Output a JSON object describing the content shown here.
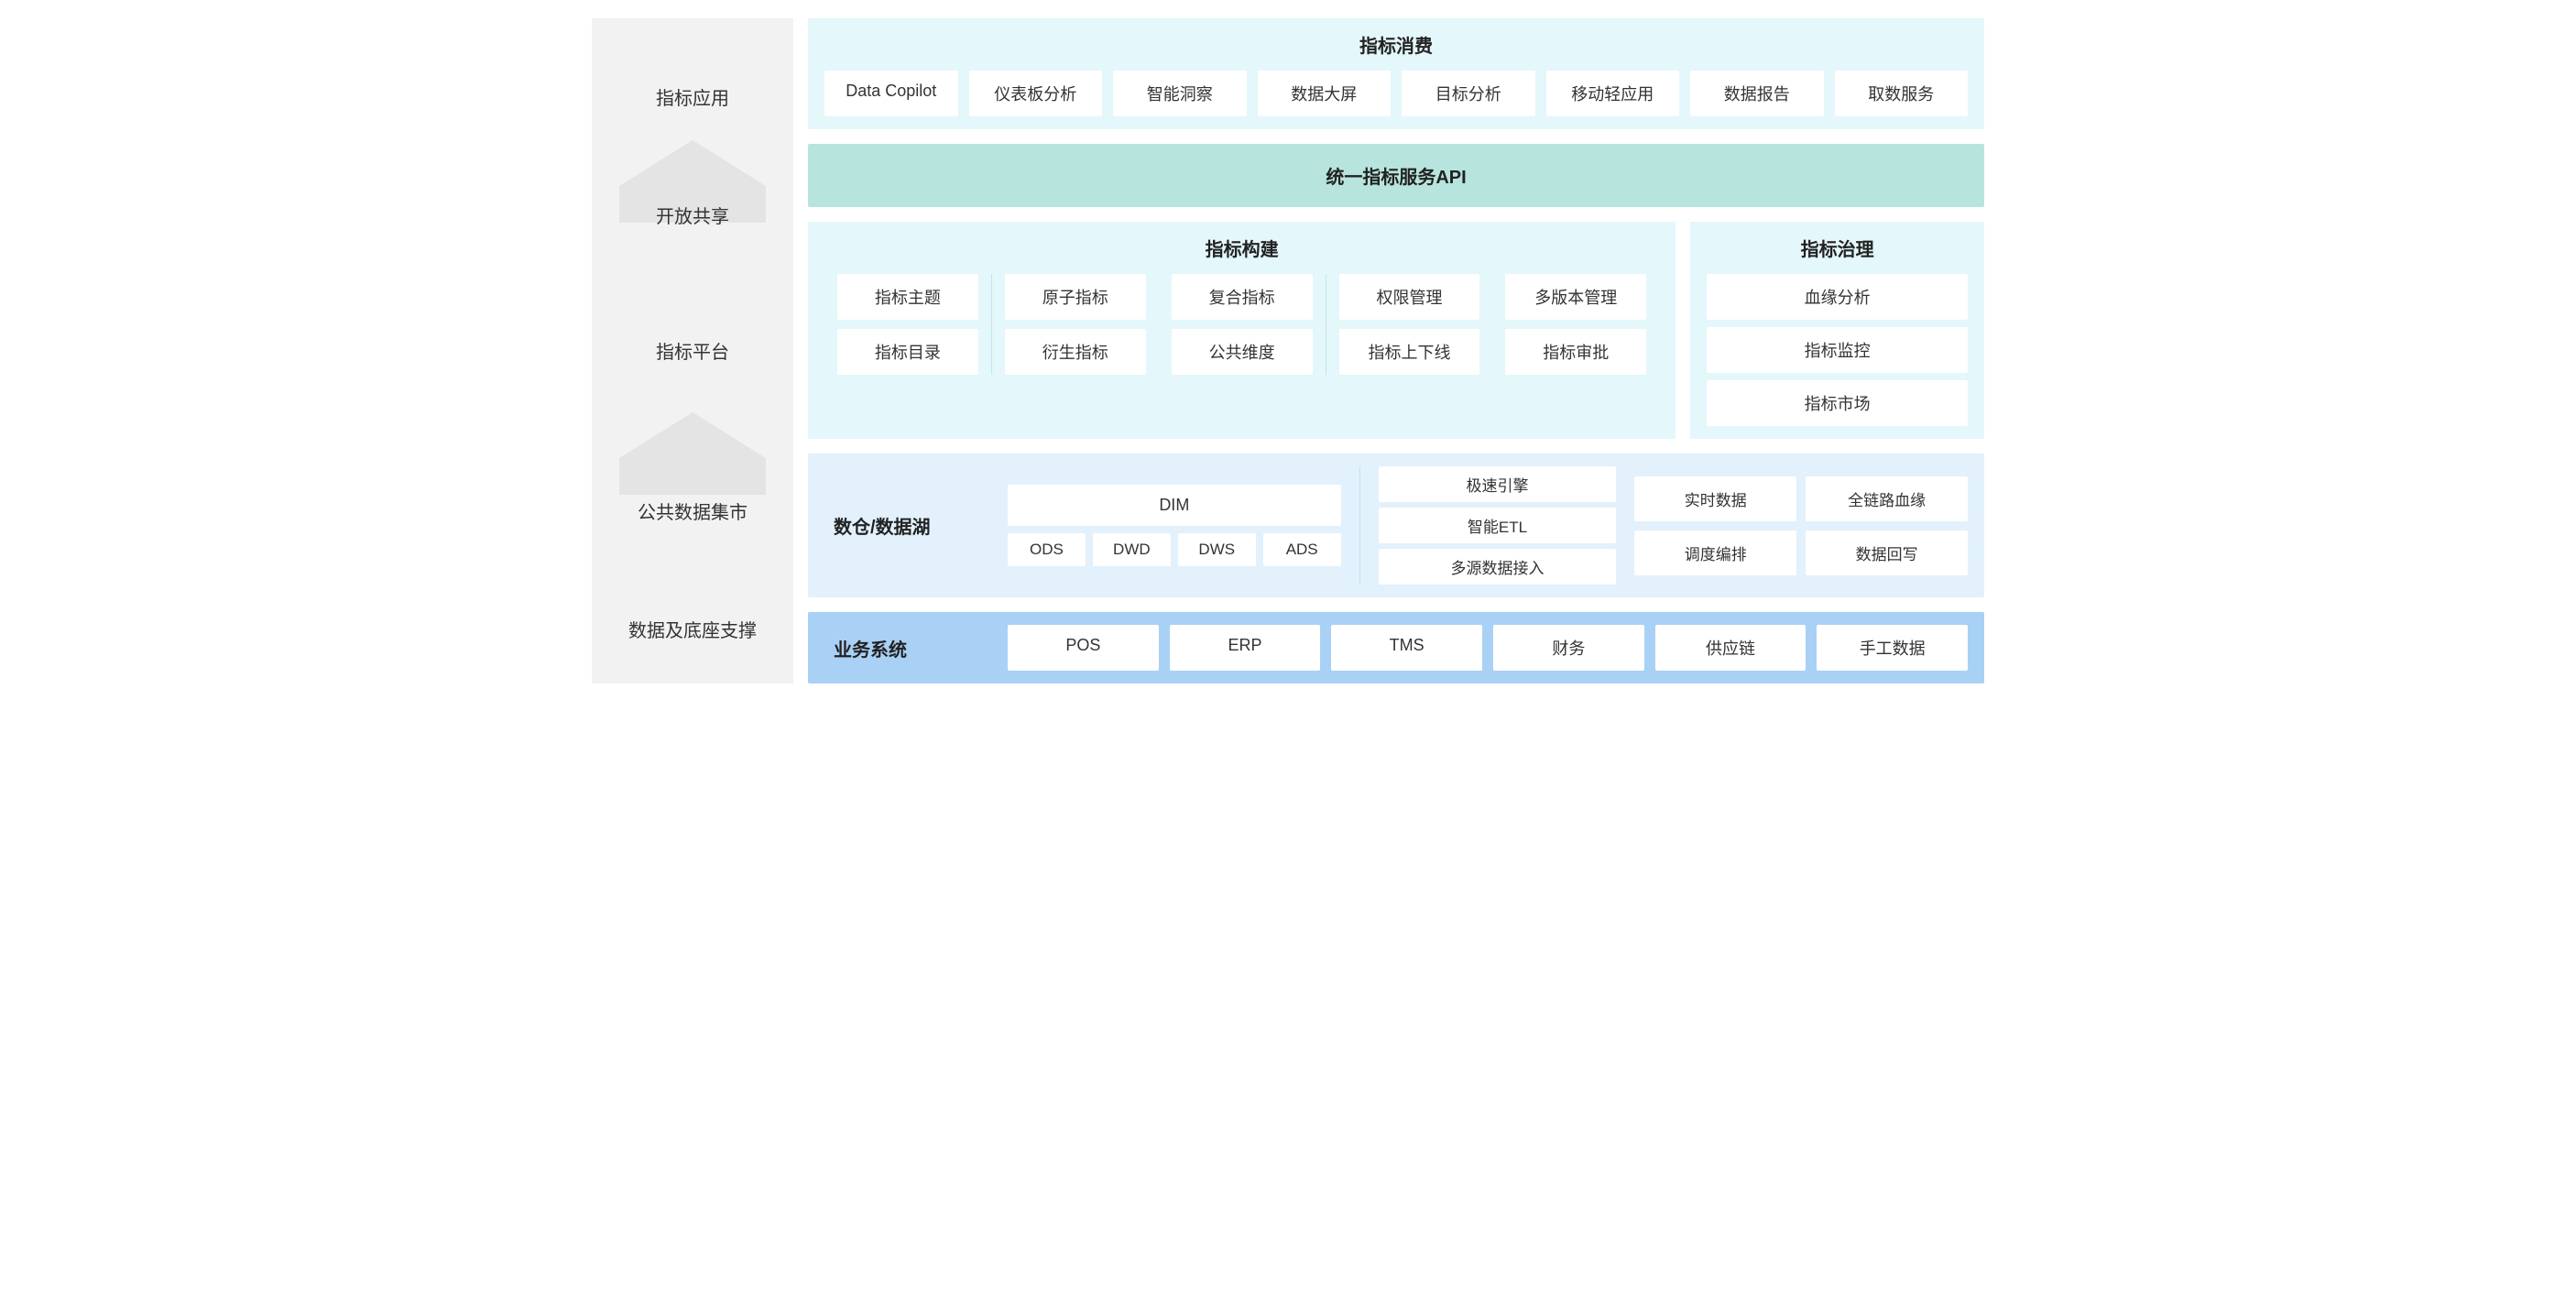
{
  "colors": {
    "sidebar_bg": "#f2f2f2",
    "arrow_bg": "#e4e4e4",
    "section_light_cyan": "#e4f7fa",
    "section_teal": "#b7e5de",
    "section_light_blue": "#e2f1fb",
    "section_blue": "#a9d1f5",
    "box_bg": "#ffffff",
    "text_primary": "#222222",
    "text_body": "#333333",
    "divider": "#c7e5e8"
  },
  "typography": {
    "title_fontsize": 20,
    "title_weight": 600,
    "body_fontsize": 18,
    "body_weight": 400
  },
  "sidebar": {
    "items": [
      {
        "label": "指标应用",
        "arrow": false
      },
      {
        "label": "开放共享",
        "arrow": true
      },
      {
        "label": "指标平台",
        "arrow": false
      },
      {
        "label": "公共数据集市",
        "arrow": true
      },
      {
        "label": "数据及底座支撑",
        "arrow": false
      }
    ]
  },
  "consumption": {
    "title": "指标消费",
    "items": [
      "Data Copilot",
      "仪表板分析",
      "智能洞察",
      "数据大屏",
      "目标分析",
      "移动轻应用",
      "数据报告",
      "取数服务"
    ]
  },
  "api": {
    "title": "统一指标服务API"
  },
  "build": {
    "title": "指标构建",
    "cols": [
      [
        "指标主题",
        "指标目录"
      ],
      [
        "原子指标",
        "衍生指标"
      ],
      [
        "复合指标",
        "公共维度"
      ],
      [
        "权限管理",
        "指标上下线"
      ],
      [
        "多版本管理",
        "指标审批"
      ]
    ]
  },
  "govern": {
    "title": "指标治理",
    "items": [
      "血缘分析",
      "指标监控",
      "指标市场"
    ]
  },
  "dw": {
    "label": "数仓/数据湖",
    "top": "DIM",
    "layers": [
      "ODS",
      "DWD",
      "DWS",
      "ADS"
    ],
    "engine": [
      "极速引擎",
      "智能ETL",
      "多源数据接入"
    ],
    "features": [
      "实时数据",
      "全链路血缘",
      "调度编排",
      "数据回写"
    ]
  },
  "biz": {
    "label": "业务系统",
    "items": [
      "POS",
      "ERP",
      "TMS",
      "财务",
      "供应链",
      "手工数据"
    ]
  }
}
